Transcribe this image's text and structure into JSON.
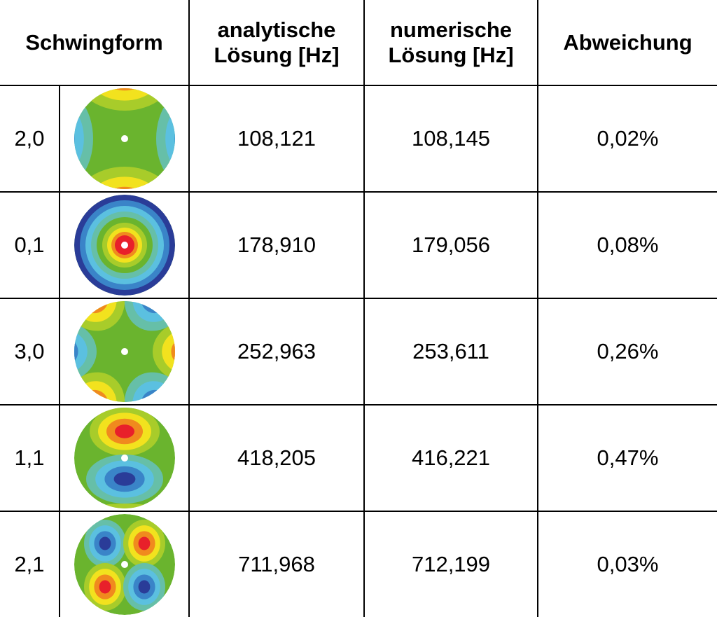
{
  "header": {
    "mode": "Schwingform",
    "analytic_line1": "analytische",
    "analytic_line2": "Lösung [Hz]",
    "numeric_line1": "numerische",
    "numeric_line2": "Lösung [Hz]",
    "deviation": "Abweichung"
  },
  "rows": [
    {
      "mode": "2,0",
      "analytic": "108,121",
      "numeric": "108,145",
      "deviation": "0,02%"
    },
    {
      "mode": "0,1",
      "analytic": "178,910",
      "numeric": "179,056",
      "deviation": "0,08%"
    },
    {
      "mode": "3,0",
      "analytic": "252,963",
      "numeric": "253,611",
      "deviation": "0,26%"
    },
    {
      "mode": "1,1",
      "analytic": "418,205",
      "numeric": "416,221",
      "deviation": "0,47%"
    },
    {
      "mode": "2,1",
      "analytic": "711,968",
      "numeric": "712,199",
      "deviation": "0,03%"
    }
  ]
}
